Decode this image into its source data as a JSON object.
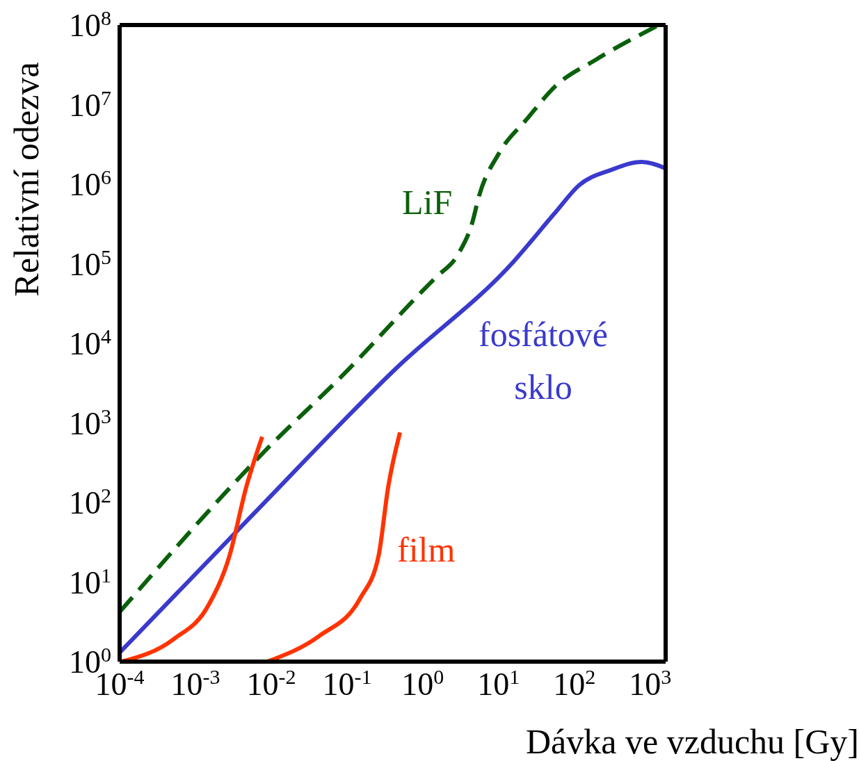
{
  "chart_data": {
    "type": "line",
    "xlabel": "Dávka ve vzduchu [Gy]",
    "ylabel": "Relativní odezva",
    "log": "xy",
    "xlim": [
      0.0001,
      1600
    ],
    "ylim": [
      1,
      100000000
    ],
    "xticks": [
      {
        "value": 0.0001,
        "label": "10$^{-4}$"
      },
      {
        "value": 0.001,
        "label": "10$^{-3}$"
      },
      {
        "value": 0.01,
        "label": "10$^{-2}$"
      },
      {
        "value": 0.1,
        "label": "10$^{-1}$"
      },
      {
        "value": 1,
        "label": "10$^{0}$"
      },
      {
        "value": 10,
        "label": "10$^{1}$"
      },
      {
        "value": 100,
        "label": "10$^{2}$"
      },
      {
        "value": 1000,
        "label": "10$^{3}$"
      }
    ],
    "yticks": [
      {
        "value": 1,
        "label": "10$^{0}$"
      },
      {
        "value": 10,
        "label": "10$^{1}$"
      },
      {
        "value": 100,
        "label": "10$^{2}$"
      },
      {
        "value": 1000,
        "label": "10$^{3}$"
      },
      {
        "value": 10000,
        "label": "10$^{4}$"
      },
      {
        "value": 100000,
        "label": "10$^{5}$"
      },
      {
        "value": 1000000,
        "label": "10$^{6}$"
      },
      {
        "value": 10000000,
        "label": "10$^{7}$"
      },
      {
        "value": 100000000,
        "label": "10$^{8}$"
      }
    ],
    "marker": "none",
    "series": [
      {
        "name": "LiF",
        "color": "#0b600b",
        "line_style": "dashed",
        "x": [
          0.0001,
          0.008,
          0.1,
          1,
          1.5,
          2.9,
          4.5,
          5.5,
          10,
          24,
          56,
          195,
          1300
        ],
        "values": [
          4.2,
          430,
          4500,
          46000,
          68000,
          130000,
          330000,
          700000,
          2400000,
          6700000,
          17000000,
          37000000,
          100000000
        ]
      },
      {
        "name": "fosfátové sklo",
        "color": "#3a3acc",
        "line_style": "solid",
        "x": [
          0.0001,
          0.0052,
          0.44,
          16,
          56,
          117,
          300,
          775,
          1550
        ],
        "values": [
          1.3,
          64,
          4800,
          108000,
          440000,
          980000,
          1500000,
          1900000,
          1600000
        ]
      },
      {
        "name": "film",
        "color": "#ff3300",
        "line_style": "solid",
        "x": [
          0.000107,
          0.00051,
          0.0015,
          0.0028,
          0.0047,
          0.0076
        ],
        "values": [
          1,
          1.9,
          5.2,
          21,
          158,
          670
        ]
      },
      {
        "color": "#ff3300",
        "line_style": "solid",
        "x": [
          0.0089,
          0.043,
          0.15,
          0.26,
          0.35,
          0.5
        ],
        "values": [
          1,
          2.1,
          6.3,
          21,
          158,
          760
        ]
      }
    ]
  }
}
